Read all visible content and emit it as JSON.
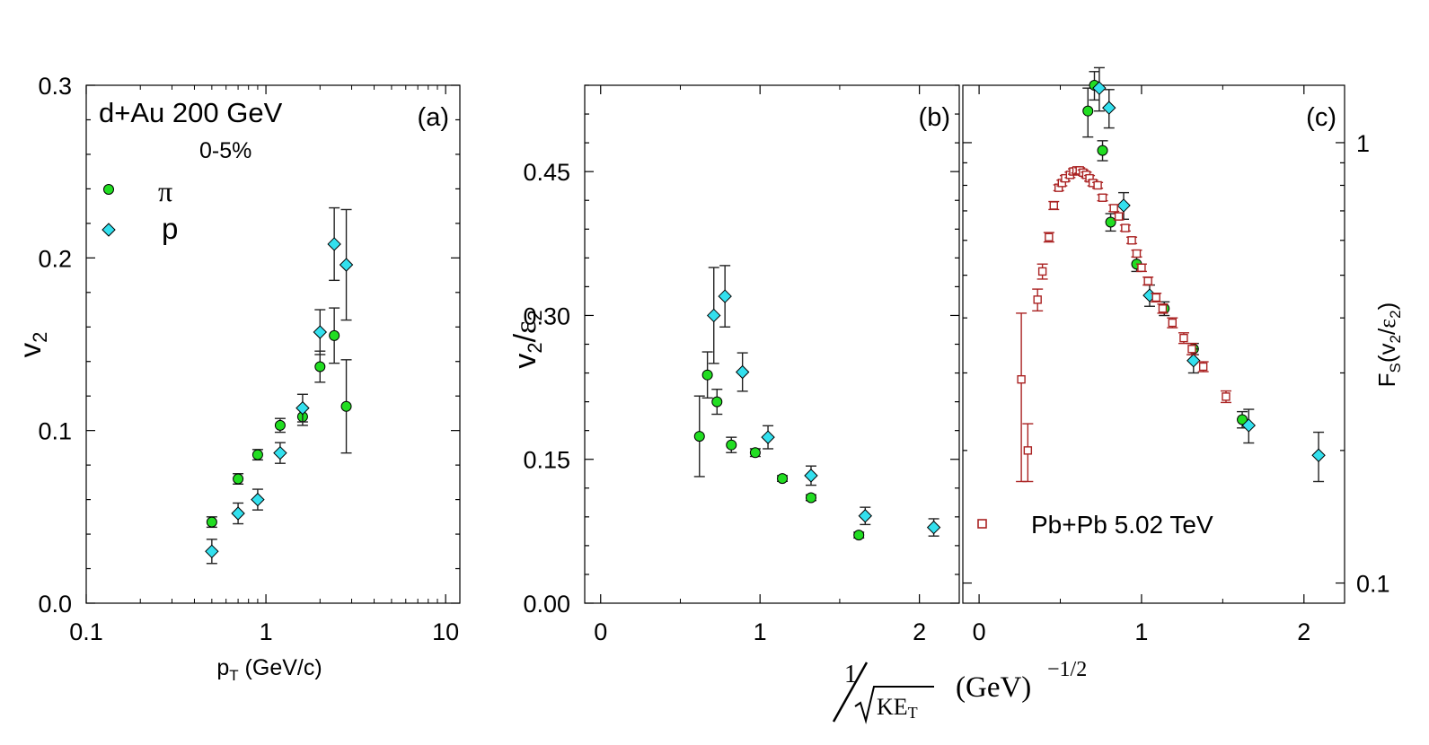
{
  "chart_data": [
    {
      "id": "a",
      "type": "scatter",
      "xscale": "log",
      "xlim": [
        0.1,
        12
      ],
      "ylim": [
        0.0,
        0.3
      ],
      "xticks": [
        0.1,
        1,
        10
      ],
      "xtick_labels": [
        "0.1",
        "1",
        "10"
      ],
      "yticks": [
        0.0,
        0.1,
        0.2,
        0.3
      ],
      "ytick_labels": [
        "0.0",
        "0.1",
        "0.2",
        "0.3"
      ],
      "xlabel_main": "p",
      "xlabel_sub": "T",
      "xlabel_rest": " (GeV/c)",
      "ylabel_main": "v",
      "ylabel_sub": "2",
      "panel_label": "(a)",
      "annotation_system": "d+Au  200 GeV",
      "annotation_centrality": "0-5%",
      "legend": [
        {
          "name": "π",
          "marker": "circle",
          "color": "#22dd22"
        },
        {
          "name": "p",
          "marker": "diamond",
          "color": "#33e0ee"
        }
      ],
      "series": [
        {
          "name": "π",
          "marker": "circle",
          "color": "#22dd22",
          "points": [
            {
              "x": 0.5,
              "y": 0.047,
              "err": 0.003
            },
            {
              "x": 0.7,
              "y": 0.072,
              "err": 0.003
            },
            {
              "x": 0.9,
              "y": 0.086,
              "err": 0.003
            },
            {
              "x": 1.2,
              "y": 0.103,
              "err": 0.004
            },
            {
              "x": 1.6,
              "y": 0.108,
              "err": 0.005
            },
            {
              "x": 2.0,
              "y": 0.137,
              "err": 0.009
            },
            {
              "x": 2.4,
              "y": 0.155,
              "err": 0.016
            },
            {
              "x": 2.8,
              "y": 0.114,
              "err": 0.027
            }
          ]
        },
        {
          "name": "p",
          "marker": "diamond",
          "color": "#33e0ee",
          "points": [
            {
              "x": 0.5,
              "y": 0.03,
              "err": 0.007
            },
            {
              "x": 0.7,
              "y": 0.052,
              "err": 0.006
            },
            {
              "x": 0.9,
              "y": 0.06,
              "err": 0.006
            },
            {
              "x": 1.2,
              "y": 0.087,
              "err": 0.006
            },
            {
              "x": 1.6,
              "y": 0.113,
              "err": 0.008
            },
            {
              "x": 2.0,
              "y": 0.157,
              "err": 0.013
            },
            {
              "x": 2.4,
              "y": 0.208,
              "err": 0.021
            },
            {
              "x": 2.8,
              "y": 0.196,
              "err": 0.032
            }
          ]
        }
      ]
    },
    {
      "id": "b",
      "type": "scatter",
      "xlim": [
        -0.1,
        2.25
      ],
      "ylim": [
        0.0,
        0.54
      ],
      "xticks": [
        0,
        1,
        2
      ],
      "xtick_labels": [
        "0",
        "1",
        "2"
      ],
      "yticks": [
        0.0,
        0.15,
        0.3,
        0.45
      ],
      "ytick_labels": [
        "0.00",
        "0.15",
        "0.30",
        "0.45"
      ],
      "ylabel_v": "v",
      "ylabel_v_sub": "2",
      "ylabel_slash": "/",
      "ylabel_eps": "ε",
      "ylabel_eps_sub": "2",
      "panel_label": "(b)",
      "series": [
        {
          "name": "π",
          "marker": "circle",
          "color": "#22dd22",
          "points": [
            {
              "x": 0.62,
              "y": 0.174,
              "err": 0.042
            },
            {
              "x": 0.67,
              "y": 0.238,
              "err": 0.024
            },
            {
              "x": 0.73,
              "y": 0.21,
              "err": 0.013
            },
            {
              "x": 0.82,
              "y": 0.165,
              "err": 0.008
            },
            {
              "x": 0.97,
              "y": 0.157,
              "err": 0.004
            },
            {
              "x": 1.14,
              "y": 0.13,
              "err": 0.003
            },
            {
              "x": 1.32,
              "y": 0.11,
              "err": 0.003
            },
            {
              "x": 1.62,
              "y": 0.071,
              "err": 0.003
            }
          ]
        },
        {
          "name": "p",
          "marker": "diamond",
          "color": "#33e0ee",
          "points": [
            {
              "x": 0.71,
              "y": 0.3,
              "err": 0.05
            },
            {
              "x": 0.78,
              "y": 0.32,
              "err": 0.032
            },
            {
              "x": 0.89,
              "y": 0.241,
              "err": 0.02
            },
            {
              "x": 1.05,
              "y": 0.173,
              "err": 0.012
            },
            {
              "x": 1.32,
              "y": 0.133,
              "err": 0.01
            },
            {
              "x": 1.66,
              "y": 0.091,
              "err": 0.009
            },
            {
              "x": 2.09,
              "y": 0.079,
              "err": 0.009
            }
          ]
        }
      ]
    },
    {
      "id": "c",
      "type": "scatter",
      "xlim": [
        -0.1,
        2.25
      ],
      "yscale": "log",
      "ylim": [
        0.09,
        1.35
      ],
      "xticks": [
        0,
        1,
        2
      ],
      "xtick_labels": [
        "0",
        "1",
        "2"
      ],
      "yticks": [
        0.1,
        1
      ],
      "ytick_labels": [
        "0.1",
        "1"
      ],
      "ylabel_F": "F",
      "ylabel_F_sub": "S",
      "ylabel_rest_open": "(v",
      "ylabel_v_sub": "2",
      "ylabel_slash": "/",
      "ylabel_eps": "ε",
      "ylabel_eps_sub": "2",
      "ylabel_close": ")",
      "panel_label": "(c)",
      "legend": [
        {
          "name": "Pb+Pb  5.02 TeV",
          "marker": "open-square",
          "color": "#aa2222"
        }
      ],
      "series": [
        {
          "name": "π",
          "marker": "circle",
          "color": "#22dd22",
          "points": [
            {
              "x": 0.67,
              "y": 1.18,
              "err": 0.15
            },
            {
              "x": 0.71,
              "y": 1.35,
              "err": 0.1
            },
            {
              "x": 0.76,
              "y": 0.96,
              "err": 0.05
            },
            {
              "x": 0.81,
              "y": 0.66,
              "err": 0.03
            },
            {
              "x": 0.97,
              "y": 0.53,
              "err": 0.02
            },
            {
              "x": 1.14,
              "y": 0.42,
              "err": 0.015
            },
            {
              "x": 1.32,
              "y": 0.34,
              "err": 0.01
            },
            {
              "x": 1.62,
              "y": 0.235,
              "err": 0.01
            }
          ]
        },
        {
          "name": "p",
          "marker": "diamond",
          "color": "#33e0ee",
          "points": [
            {
              "x": 0.74,
              "y": 1.33,
              "err": 0.15
            },
            {
              "x": 0.8,
              "y": 1.2,
              "err": 0.12
            },
            {
              "x": 0.89,
              "y": 0.72,
              "err": 0.05
            },
            {
              "x": 1.05,
              "y": 0.45,
              "err": 0.025
            },
            {
              "x": 1.32,
              "y": 0.32,
              "err": 0.02
            },
            {
              "x": 1.66,
              "y": 0.228,
              "err": 0.02
            },
            {
              "x": 2.09,
              "y": 0.195,
              "err": 0.025
            }
          ]
        },
        {
          "name": "Pb+Pb  5.02 TeV",
          "marker": "open-square",
          "color": "#aa2222",
          "points": [
            {
              "x": 0.26,
              "y": 0.29,
              "err": 0.12
            },
            {
              "x": 0.3,
              "y": 0.2,
              "err": 0.03
            },
            {
              "x": 0.36,
              "y": 0.44,
              "err": 0.025
            },
            {
              "x": 0.39,
              "y": 0.51,
              "err": 0.02
            },
            {
              "x": 0.43,
              "y": 0.61,
              "err": 0.015
            },
            {
              "x": 0.46,
              "y": 0.72,
              "err": 0.015
            },
            {
              "x": 0.49,
              "y": 0.79,
              "err": 0.012
            },
            {
              "x": 0.51,
              "y": 0.81,
              "err": 0.012
            },
            {
              "x": 0.53,
              "y": 0.83,
              "err": 0.012
            },
            {
              "x": 0.56,
              "y": 0.845,
              "err": 0.012
            },
            {
              "x": 0.58,
              "y": 0.86,
              "err": 0.012
            },
            {
              "x": 0.6,
              "y": 0.865,
              "err": 0.012
            },
            {
              "x": 0.62,
              "y": 0.865,
              "err": 0.012
            },
            {
              "x": 0.64,
              "y": 0.855,
              "err": 0.012
            },
            {
              "x": 0.66,
              "y": 0.845,
              "err": 0.012
            },
            {
              "x": 0.68,
              "y": 0.83,
              "err": 0.012
            },
            {
              "x": 0.7,
              "y": 0.81,
              "err": 0.012
            },
            {
              "x": 0.73,
              "y": 0.8,
              "err": 0.012
            },
            {
              "x": 0.76,
              "y": 0.75,
              "err": 0.012
            },
            {
              "x": 0.83,
              "y": 0.71,
              "err": 0.012
            },
            {
              "x": 0.86,
              "y": 0.68,
              "err": 0.012
            },
            {
              "x": 0.9,
              "y": 0.64,
              "err": 0.01
            },
            {
              "x": 0.94,
              "y": 0.6,
              "err": 0.01
            },
            {
              "x": 0.97,
              "y": 0.56,
              "err": 0.01
            },
            {
              "x": 1.0,
              "y": 0.52,
              "err": 0.01
            },
            {
              "x": 1.04,
              "y": 0.485,
              "err": 0.01
            },
            {
              "x": 1.09,
              "y": 0.445,
              "err": 0.01
            },
            {
              "x": 1.13,
              "y": 0.42,
              "err": 0.01
            },
            {
              "x": 1.19,
              "y": 0.39,
              "err": 0.01
            },
            {
              "x": 1.26,
              "y": 0.36,
              "err": 0.01
            },
            {
              "x": 1.31,
              "y": 0.34,
              "err": 0.01
            },
            {
              "x": 1.38,
              "y": 0.31,
              "err": 0.008
            },
            {
              "x": 1.52,
              "y": 0.265,
              "err": 0.008
            }
          ]
        }
      ]
    }
  ],
  "shared_xlabel": {
    "one": "1",
    "radicand_main": "KE",
    "radicand_sub": "T",
    "unit": "(GeV)",
    "exponent": "−1/2"
  }
}
